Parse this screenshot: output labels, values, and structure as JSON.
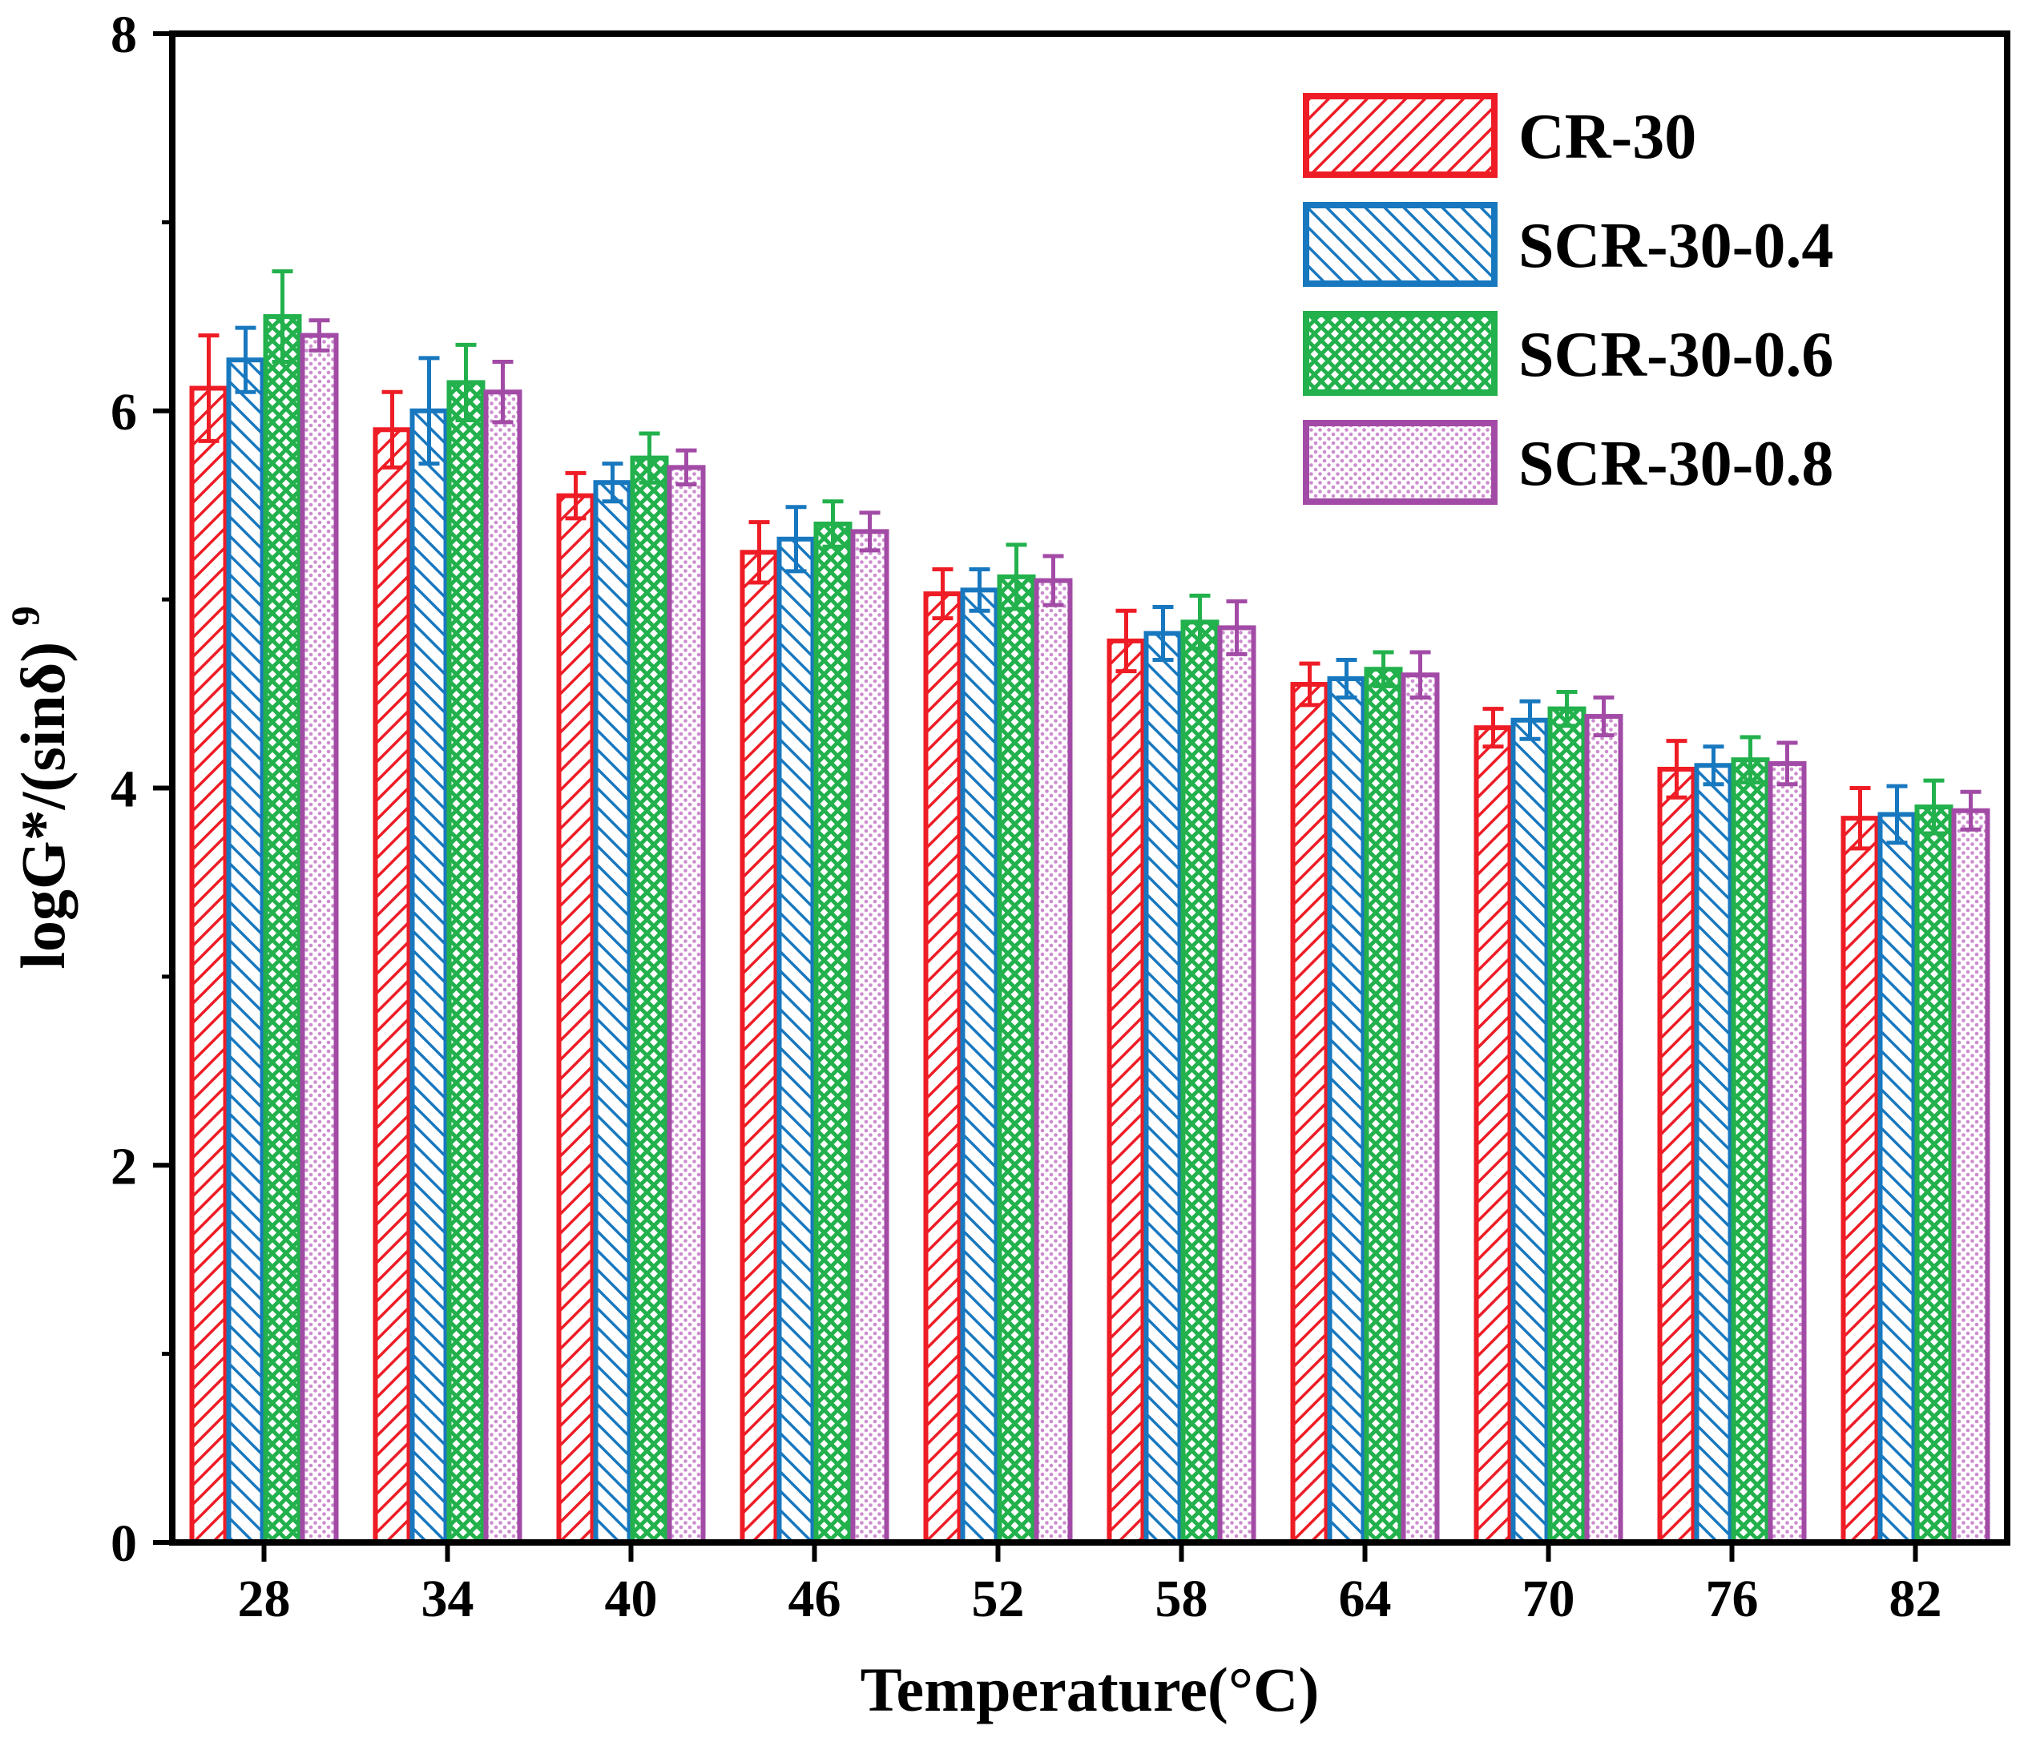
{
  "figure": {
    "background": "#ffffff",
    "axis_color": "#000000"
  },
  "chart_data": {
    "type": "bar",
    "title": "",
    "xlabel": "Temperature(°C)",
    "ylabel": "logG*/(sinδ)",
    "ylabel_superscript": "9",
    "ylim": [
      0,
      8
    ],
    "yticks": [
      0,
      2,
      4,
      6,
      8
    ],
    "yticks_minor": [
      1,
      3,
      5,
      7
    ],
    "grid": false,
    "legend_position": "top-right",
    "categories": [
      "28",
      "34",
      "40",
      "46",
      "52",
      "58",
      "64",
      "70",
      "76",
      "82"
    ],
    "series": [
      {
        "name": "CR-30",
        "color": "#ee1c25",
        "hatch": "diagonal-forward",
        "values": [
          6.12,
          5.9,
          5.55,
          5.25,
          5.03,
          4.78,
          4.55,
          4.32,
          4.1,
          3.84
        ],
        "errors": [
          0.28,
          0.2,
          0.12,
          0.16,
          0.13,
          0.16,
          0.11,
          0.1,
          0.15,
          0.16
        ]
      },
      {
        "name": "SCR-30-0.4",
        "color": "#1878bf",
        "hatch": "diagonal-back",
        "values": [
          6.27,
          6.0,
          5.62,
          5.32,
          5.05,
          4.82,
          4.58,
          4.36,
          4.12,
          3.86
        ],
        "errors": [
          0.17,
          0.28,
          0.1,
          0.17,
          0.11,
          0.14,
          0.1,
          0.1,
          0.1,
          0.15
        ]
      },
      {
        "name": "SCR-30-0.6",
        "color": "#22b14c",
        "hatch": "cross",
        "values": [
          6.5,
          6.15,
          5.75,
          5.4,
          5.12,
          4.88,
          4.63,
          4.42,
          4.15,
          3.9
        ],
        "errors": [
          0.24,
          0.2,
          0.13,
          0.12,
          0.17,
          0.14,
          0.09,
          0.09,
          0.12,
          0.14
        ]
      },
      {
        "name": "SCR-30-0.8",
        "color": "#a24ba6",
        "hatch": "dots",
        "hatch_color": "#cd8ccf",
        "values": [
          6.4,
          6.1,
          5.7,
          5.36,
          5.1,
          4.85,
          4.6,
          4.38,
          4.13,
          3.88
        ],
        "errors": [
          0.08,
          0.16,
          0.09,
          0.1,
          0.13,
          0.14,
          0.12,
          0.1,
          0.11,
          0.1
        ]
      }
    ]
  }
}
